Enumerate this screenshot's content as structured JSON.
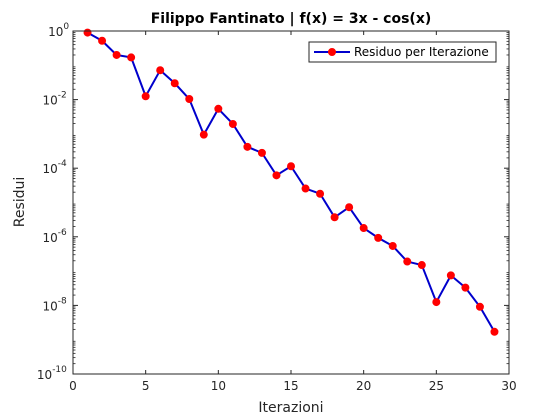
{
  "chart_data": {
    "type": "line",
    "title": "Filippo Fantinato | f(x) = 3x - cos(x)",
    "xlabel": "Iterazioni",
    "ylabel": "Residui",
    "xlim": [
      0,
      30
    ],
    "ylim_log10": [
      -10,
      0
    ],
    "yscale": "log",
    "x_ticks": [
      "0",
      "5",
      "10",
      "15",
      "20",
      "25",
      "30"
    ],
    "y_ticks": [
      {
        "base": "10",
        "exp": "0",
        "value": 1
      },
      {
        "base": "10",
        "exp": "-2",
        "value": 0.01
      },
      {
        "base": "10",
        "exp": "-4",
        "value": 0.0001
      },
      {
        "base": "10",
        "exp": "-6",
        "value": 1e-06
      },
      {
        "base": "10",
        "exp": "-8",
        "value": 1e-08
      },
      {
        "base": "10",
        "exp": "-10",
        "value": 1e-10
      }
    ],
    "legend_position": "top-right",
    "series": [
      {
        "name": "Residuo per Iterazione",
        "line_color": "#0000cc",
        "marker_color": "#ff0000",
        "x": [
          1,
          2,
          3,
          4,
          5,
          6,
          7,
          8,
          9,
          10,
          11,
          12,
          13,
          14,
          15,
          16,
          17,
          18,
          19,
          20,
          21,
          22,
          23,
          24,
          25,
          26,
          27,
          28,
          29
        ],
        "y": [
          0.9,
          0.52,
          0.2,
          0.17,
          0.0125,
          0.072,
          0.03,
          0.0104,
          0.00095,
          0.0054,
          0.00195,
          0.00042,
          0.00028,
          6.2e-05,
          0.000114,
          2.55e-05,
          1.8e-05,
          3.7e-06,
          7.3e-06,
          1.8e-06,
          9.3e-07,
          5.4e-07,
          1.9e-07,
          1.5e-07,
          1.25e-08,
          7.5e-08,
          3.3e-08,
          9.1e-09,
          1.7e-09
        ]
      }
    ]
  }
}
